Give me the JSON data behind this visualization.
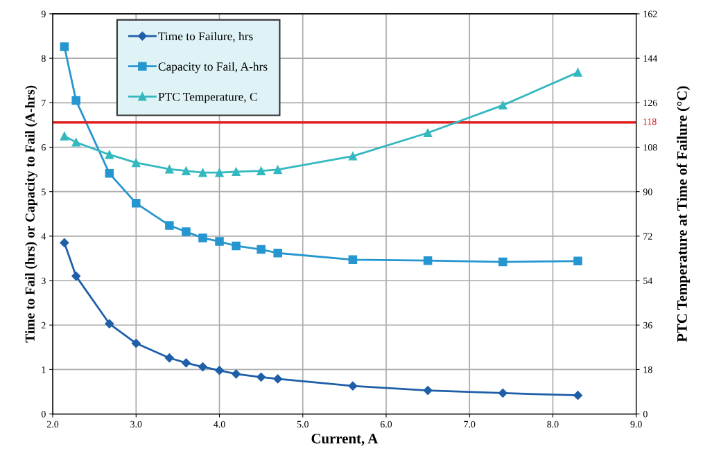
{
  "chart_data": {
    "type": "line",
    "xlabel": "Current, A",
    "ylabel": "Time to Fail (hrs) or Capacity to Fail (A-hrs)",
    "y2label": "PTC Temperature at Time of Failure (°C)",
    "x": [
      2.14,
      2.28,
      2.68,
      3.0,
      3.4,
      3.6,
      3.8,
      4.0,
      4.2,
      4.5,
      4.7,
      5.6,
      6.5,
      7.4,
      8.3
    ],
    "series": [
      {
        "name": "Time to Failure, hrs",
        "color": "#1f5fa8",
        "marker": "diamond",
        "values": [
          3.85,
          3.1,
          2.03,
          1.59,
          1.26,
          1.15,
          1.06,
          0.98,
          0.9,
          0.83,
          0.79,
          0.63,
          0.53,
          0.47,
          0.42
        ]
      },
      {
        "name": "Capacity to Fail, A-hrs",
        "color": "#2596cf",
        "marker": "square",
        "values": [
          8.26,
          7.05,
          5.41,
          4.74,
          4.24,
          4.1,
          3.96,
          3.88,
          3.78,
          3.7,
          3.62,
          3.47,
          3.45,
          3.42,
          3.44
        ]
      },
      {
        "name": "PTC Temperature, C",
        "color": "#33b8c0",
        "marker": "triangle",
        "axis": "y2",
        "values": [
          112.5,
          110,
          105,
          101.7,
          99.1,
          98.4,
          97.7,
          97.7,
          98.1,
          98.4,
          98.9,
          104.4,
          113.8,
          125.0,
          138.3
        ]
      }
    ],
    "xlim": [
      2.0,
      9.0
    ],
    "xticks": [
      {
        "value": 2,
        "label": "2.0"
      },
      {
        "value": 3,
        "label": "3.0"
      },
      {
        "value": 4,
        "label": "4.0"
      },
      {
        "value": 5,
        "label": "5.0"
      },
      {
        "value": 6,
        "label": "6.0"
      },
      {
        "value": 7,
        "label": "7.0"
      },
      {
        "value": 8,
        "label": "8.0"
      },
      {
        "value": 9,
        "label": "9.0"
      }
    ],
    "ylim": [
      0,
      9
    ],
    "yticks": [
      0,
      1,
      2,
      3,
      4,
      5,
      6,
      7,
      8,
      9
    ],
    "y2lim": [
      0,
      162
    ],
    "y2ticks": [
      0,
      18,
      36,
      54,
      72,
      90,
      108,
      126,
      144,
      162
    ],
    "ref_lines": [
      {
        "axis": "y2",
        "value": 118,
        "label": "118",
        "color": "#e02020"
      }
    ],
    "grid": true,
    "legend": "top left"
  }
}
